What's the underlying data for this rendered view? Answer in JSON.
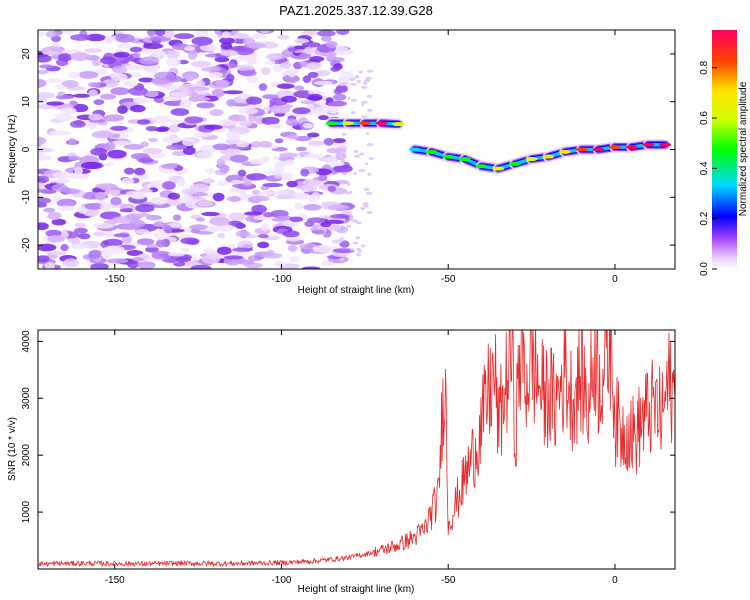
{
  "chart_data": [
    {
      "type": "heatmap",
      "title": "PAZ1.2025.337.12.39.G28",
      "xlabel": "Height of straight line (km)",
      "ylabel": "Frequency (Hz)",
      "xlim": [
        -173,
        18
      ],
      "ylim": [
        -25,
        25
      ],
      "xticks": [
        -150,
        -100,
        -50,
        0
      ],
      "yticks": [
        -20,
        -10,
        0,
        10,
        20
      ],
      "colorbar": {
        "label": "Normalized spectral amplitude",
        "range": [
          0.0,
          0.95
        ],
        "ticks": [
          0.0,
          0.2,
          0.4,
          0.6,
          0.8
        ]
      },
      "noise_region": {
        "x_from": -173,
        "x_to": -82,
        "freq_from": -25,
        "freq_to": 25,
        "amplitude": 0.08
      },
      "signal_ridge": [
        {
          "x": -85,
          "freq": 5.5,
          "amplitude": 0.35
        },
        {
          "x": -80,
          "freq": 5.5,
          "amplitude": 0.5
        },
        {
          "x": -75,
          "freq": 5.5,
          "amplitude": 0.8
        },
        {
          "x": -70,
          "freq": 5.5,
          "amplitude": 0.95
        },
        {
          "x": -65,
          "freq": 5.3,
          "amplitude": 0.5
        },
        {
          "x": -60,
          "freq": 0.0,
          "amplitude": 0.3
        },
        {
          "x": -55,
          "freq": -0.5,
          "amplitude": 0.4
        },
        {
          "x": -50,
          "freq": -1.5,
          "amplitude": 0.35
        },
        {
          "x": -45,
          "freq": -2.0,
          "amplitude": 0.45
        },
        {
          "x": -40,
          "freq": -3.5,
          "amplitude": 0.4
        },
        {
          "x": -35,
          "freq": -4.0,
          "amplitude": 0.5
        },
        {
          "x": -30,
          "freq": -3.0,
          "amplitude": 0.45
        },
        {
          "x": -25,
          "freq": -2.0,
          "amplitude": 0.55
        },
        {
          "x": -20,
          "freq": -1.5,
          "amplitude": 0.6
        },
        {
          "x": -15,
          "freq": -0.5,
          "amplitude": 0.7
        },
        {
          "x": -10,
          "freq": 0.0,
          "amplitude": 0.8
        },
        {
          "x": -5,
          "freq": 0.0,
          "amplitude": 0.85
        },
        {
          "x": 0,
          "freq": 0.5,
          "amplitude": 0.8
        },
        {
          "x": 5,
          "freq": 0.5,
          "amplitude": 0.85
        },
        {
          "x": 10,
          "freq": 1.0,
          "amplitude": 0.9
        },
        {
          "x": 15,
          "freq": 1.0,
          "amplitude": 0.85
        }
      ]
    },
    {
      "type": "line",
      "xlabel": "Height of straight line (km)",
      "ylabel": "SNR (10 * v/v)",
      "xlim": [
        -173,
        18
      ],
      "ylim": [
        0,
        4200
      ],
      "xticks": [
        -150,
        -100,
        -50,
        0
      ],
      "yticks": [
        1000,
        2000,
        3000,
        4000
      ],
      "series": [
        {
          "name": "SNR",
          "color": "#e8282a",
          "x": [
            -173,
            -160,
            -150,
            -140,
            -130,
            -120,
            -110,
            -100,
            -90,
            -80,
            -75,
            -70,
            -65,
            -60,
            -57,
            -55,
            -53,
            -51,
            -50,
            -48,
            -45,
            -42,
            -40,
            -38,
            -36,
            -35,
            -33,
            -31,
            -30,
            -28,
            -27,
            -25,
            -23,
            -21,
            -20,
            -18,
            -15,
            -13,
            -11,
            -10,
            -8,
            -6,
            -5,
            -3,
            -1,
            0,
            2,
            4,
            6,
            8,
            10,
            12,
            14,
            16,
            18
          ],
          "y": [
            90,
            100,
            95,
            90,
            100,
            95,
            100,
            110,
            140,
            200,
            260,
            330,
            420,
            560,
            700,
            1000,
            1250,
            3650,
            800,
            1100,
            1600,
            2100,
            2500,
            3050,
            3400,
            2500,
            3100,
            3900,
            2300,
            4100,
            3200,
            3700,
            3300,
            2950,
            3150,
            2850,
            3500,
            3000,
            3250,
            3450,
            2800,
            3950,
            3300,
            3600,
            4100,
            2650,
            2400,
            2500,
            2300,
            2600,
            2750,
            2850,
            2650,
            3250,
            3000
          ]
        }
      ]
    }
  ]
}
